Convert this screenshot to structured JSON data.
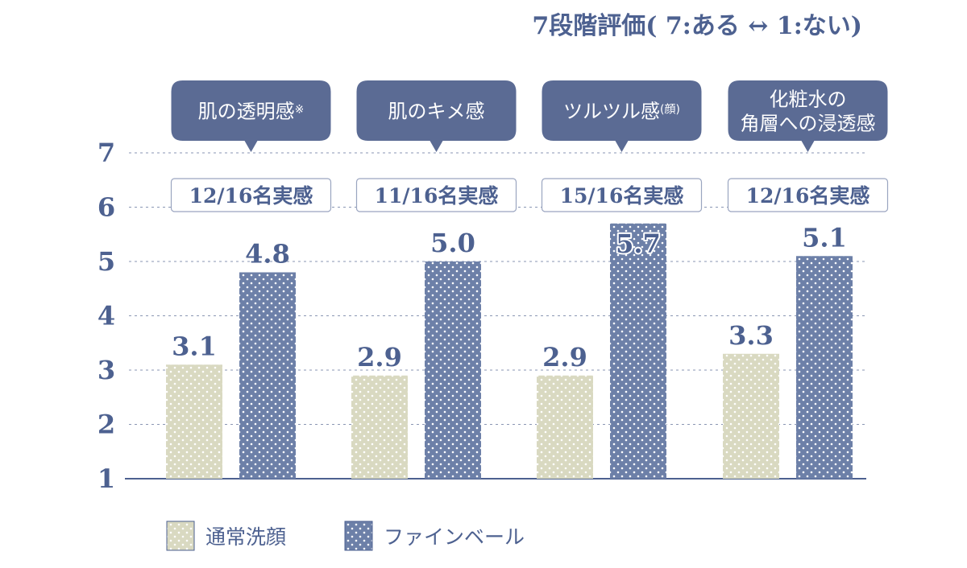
{
  "chart_data": {
    "type": "bar",
    "title": "7段階評価( 7:ある ↔ 1:ない)",
    "categories": [
      "肌の透明感※",
      "肌のキメ感",
      "ツルツル感(顔)",
      "化粧水の\n角層への浸透感"
    ],
    "category_notes": [
      "12/16名実感",
      "11/16名実感",
      "15/16名実感",
      "12/16名実感"
    ],
    "series": [
      {
        "name": "通常洗顔",
        "values": [
          3.1,
          2.9,
          2.9,
          3.3
        ],
        "color": "#d9d9c1"
      },
      {
        "name": "ファインベール",
        "values": [
          4.8,
          5.0,
          5.7,
          5.1
        ],
        "color": "#6d80a8"
      }
    ],
    "value_labels": [
      [
        "3.1",
        "2.9",
        "2.9",
        "3.3"
      ],
      [
        "4.8",
        "5.0",
        "5.7",
        "5.1"
      ]
    ],
    "yticks": [
      "1",
      "2",
      "3",
      "4",
      "5",
      "6",
      "7"
    ],
    "ylim": [
      1,
      7
    ],
    "grid": true,
    "legend": "bottom-left",
    "accent": "#4d6190",
    "bubble_color": "#5b6b94"
  }
}
